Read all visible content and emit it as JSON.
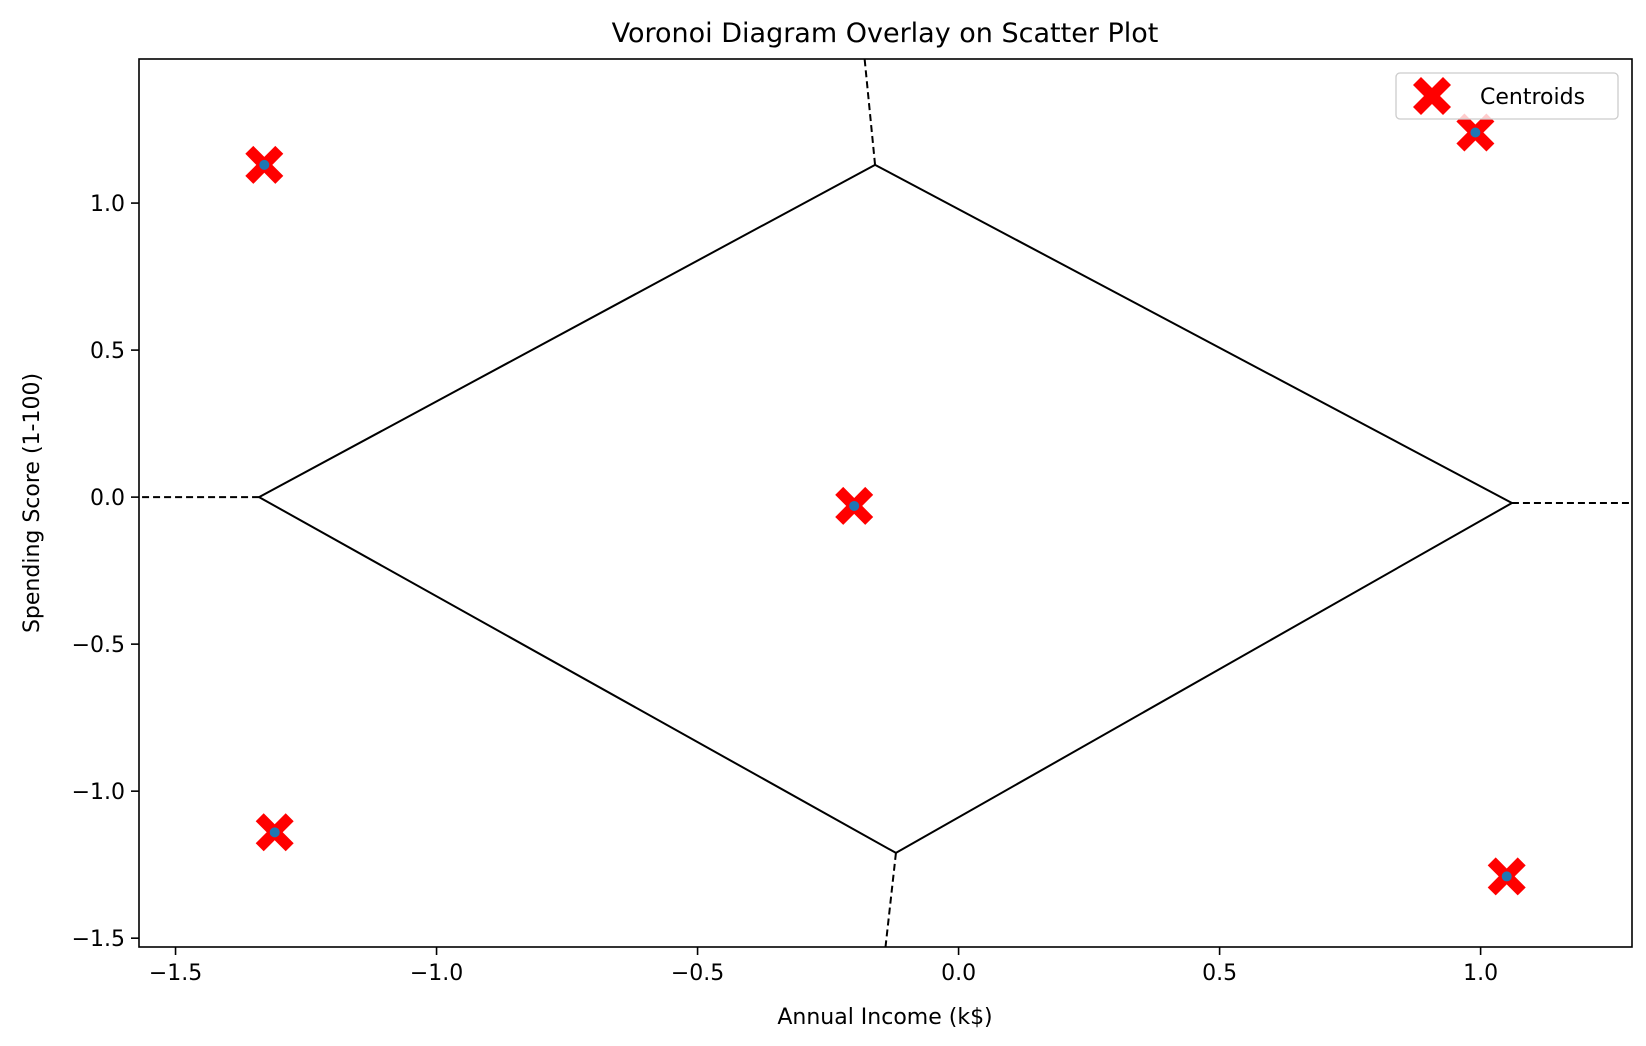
{
  "chart_data": {
    "type": "scatter",
    "title": "Voronoi Diagram Overlay on Scatter Plot",
    "xlabel": "Annual Income (k$)",
    "ylabel": "Spending Score (1-100)",
    "xlim": [
      -1.57,
      1.29
    ],
    "ylim": [
      -1.53,
      1.49
    ],
    "xticks": [
      -1.5,
      -1.0,
      -0.5,
      0.0,
      0.5,
      1.0
    ],
    "xtick_labels": [
      "−1.5",
      "−1.0",
      "−0.5",
      "0.0",
      "0.5",
      "1.0"
    ],
    "yticks": [
      1.0,
      0.5,
      0.0,
      -0.5,
      -1.0,
      -1.5
    ],
    "ytick_labels": [
      "1.0",
      "0.5",
      "0.0",
      "−0.5",
      "−1.0",
      "−1.5"
    ],
    "grid": false,
    "legend_position": "top-right",
    "series": [
      {
        "name": "Centroids",
        "marker": "X",
        "color": "#ff0000",
        "points": [
          {
            "x": -1.33,
            "y": 1.13
          },
          {
            "x": -1.31,
            "y": -1.14
          },
          {
            "x": -0.2,
            "y": -0.03
          },
          {
            "x": 0.99,
            "y": 1.24
          },
          {
            "x": 1.05,
            "y": -1.29
          }
        ]
      }
    ],
    "data_points": {
      "color": "#1f77b4",
      "points": [
        {
          "x": -1.33,
          "y": 1.13
        },
        {
          "x": -1.31,
          "y": -1.14
        },
        {
          "x": -0.2,
          "y": -0.03
        },
        {
          "x": 0.99,
          "y": 1.24
        },
        {
          "x": 1.05,
          "y": -1.29
        }
      ]
    },
    "voronoi": {
      "vertices": [
        {
          "x": -1.34,
          "y": 0.0
        },
        {
          "x": -0.16,
          "y": 1.13
        },
        {
          "x": 1.06,
          "y": -0.02
        },
        {
          "x": -0.12,
          "y": -1.21
        }
      ],
      "ridges": [
        [
          0,
          1
        ],
        [
          1,
          2
        ],
        [
          2,
          3
        ],
        [
          3,
          0
        ]
      ],
      "infinite_ridges": [
        {
          "from": {
            "x": -1.34,
            "y": 0.0
          },
          "to": {
            "x": -1.57,
            "y": 0.0
          }
        },
        {
          "from": {
            "x": -0.16,
            "y": 1.13
          },
          "to": {
            "x": -0.18,
            "y": 1.49
          }
        },
        {
          "from": {
            "x": 1.06,
            "y": -0.02
          },
          "to": {
            "x": 1.29,
            "y": -0.02
          }
        },
        {
          "from": {
            "x": -0.12,
            "y": -1.21
          },
          "to": {
            "x": -0.14,
            "y": -1.53
          }
        }
      ]
    }
  }
}
